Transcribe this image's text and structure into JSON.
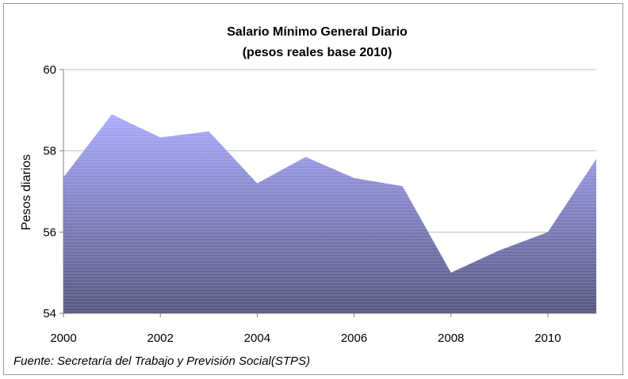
{
  "chart_data": {
    "type": "area",
    "title": "Salario Mínimo General Diario",
    "subtitle": "(pesos reales base 2010)",
    "xlabel": "",
    "ylabel": "Pesos diarios",
    "x": [
      2000,
      2001,
      2002,
      2003,
      2004,
      2005,
      2006,
      2007,
      2008,
      2009,
      2010,
      2011
    ],
    "series": [
      {
        "name": "",
        "values": [
          57.35,
          58.9,
          58.33,
          58.48,
          57.2,
          57.85,
          57.33,
          57.13,
          55.0,
          55.55,
          56.0,
          57.8
        ]
      }
    ],
    "xlim": [
      2000,
      2011
    ],
    "ylim": [
      54,
      60
    ],
    "x_ticks": [
      "2000",
      "2002",
      "2004",
      "2006",
      "2008",
      "2010"
    ],
    "y_ticks": [
      "54",
      "56",
      "58",
      "60"
    ],
    "grid": "horizontal",
    "legend": "none",
    "source": "Fuente: Secretaría del Trabajo y Previsión Social(STPS)",
    "colors": {
      "area_top": "#aaaaff",
      "area_bottom": "#555580",
      "grid": "#c0c0c0",
      "axis": "#808080"
    }
  }
}
